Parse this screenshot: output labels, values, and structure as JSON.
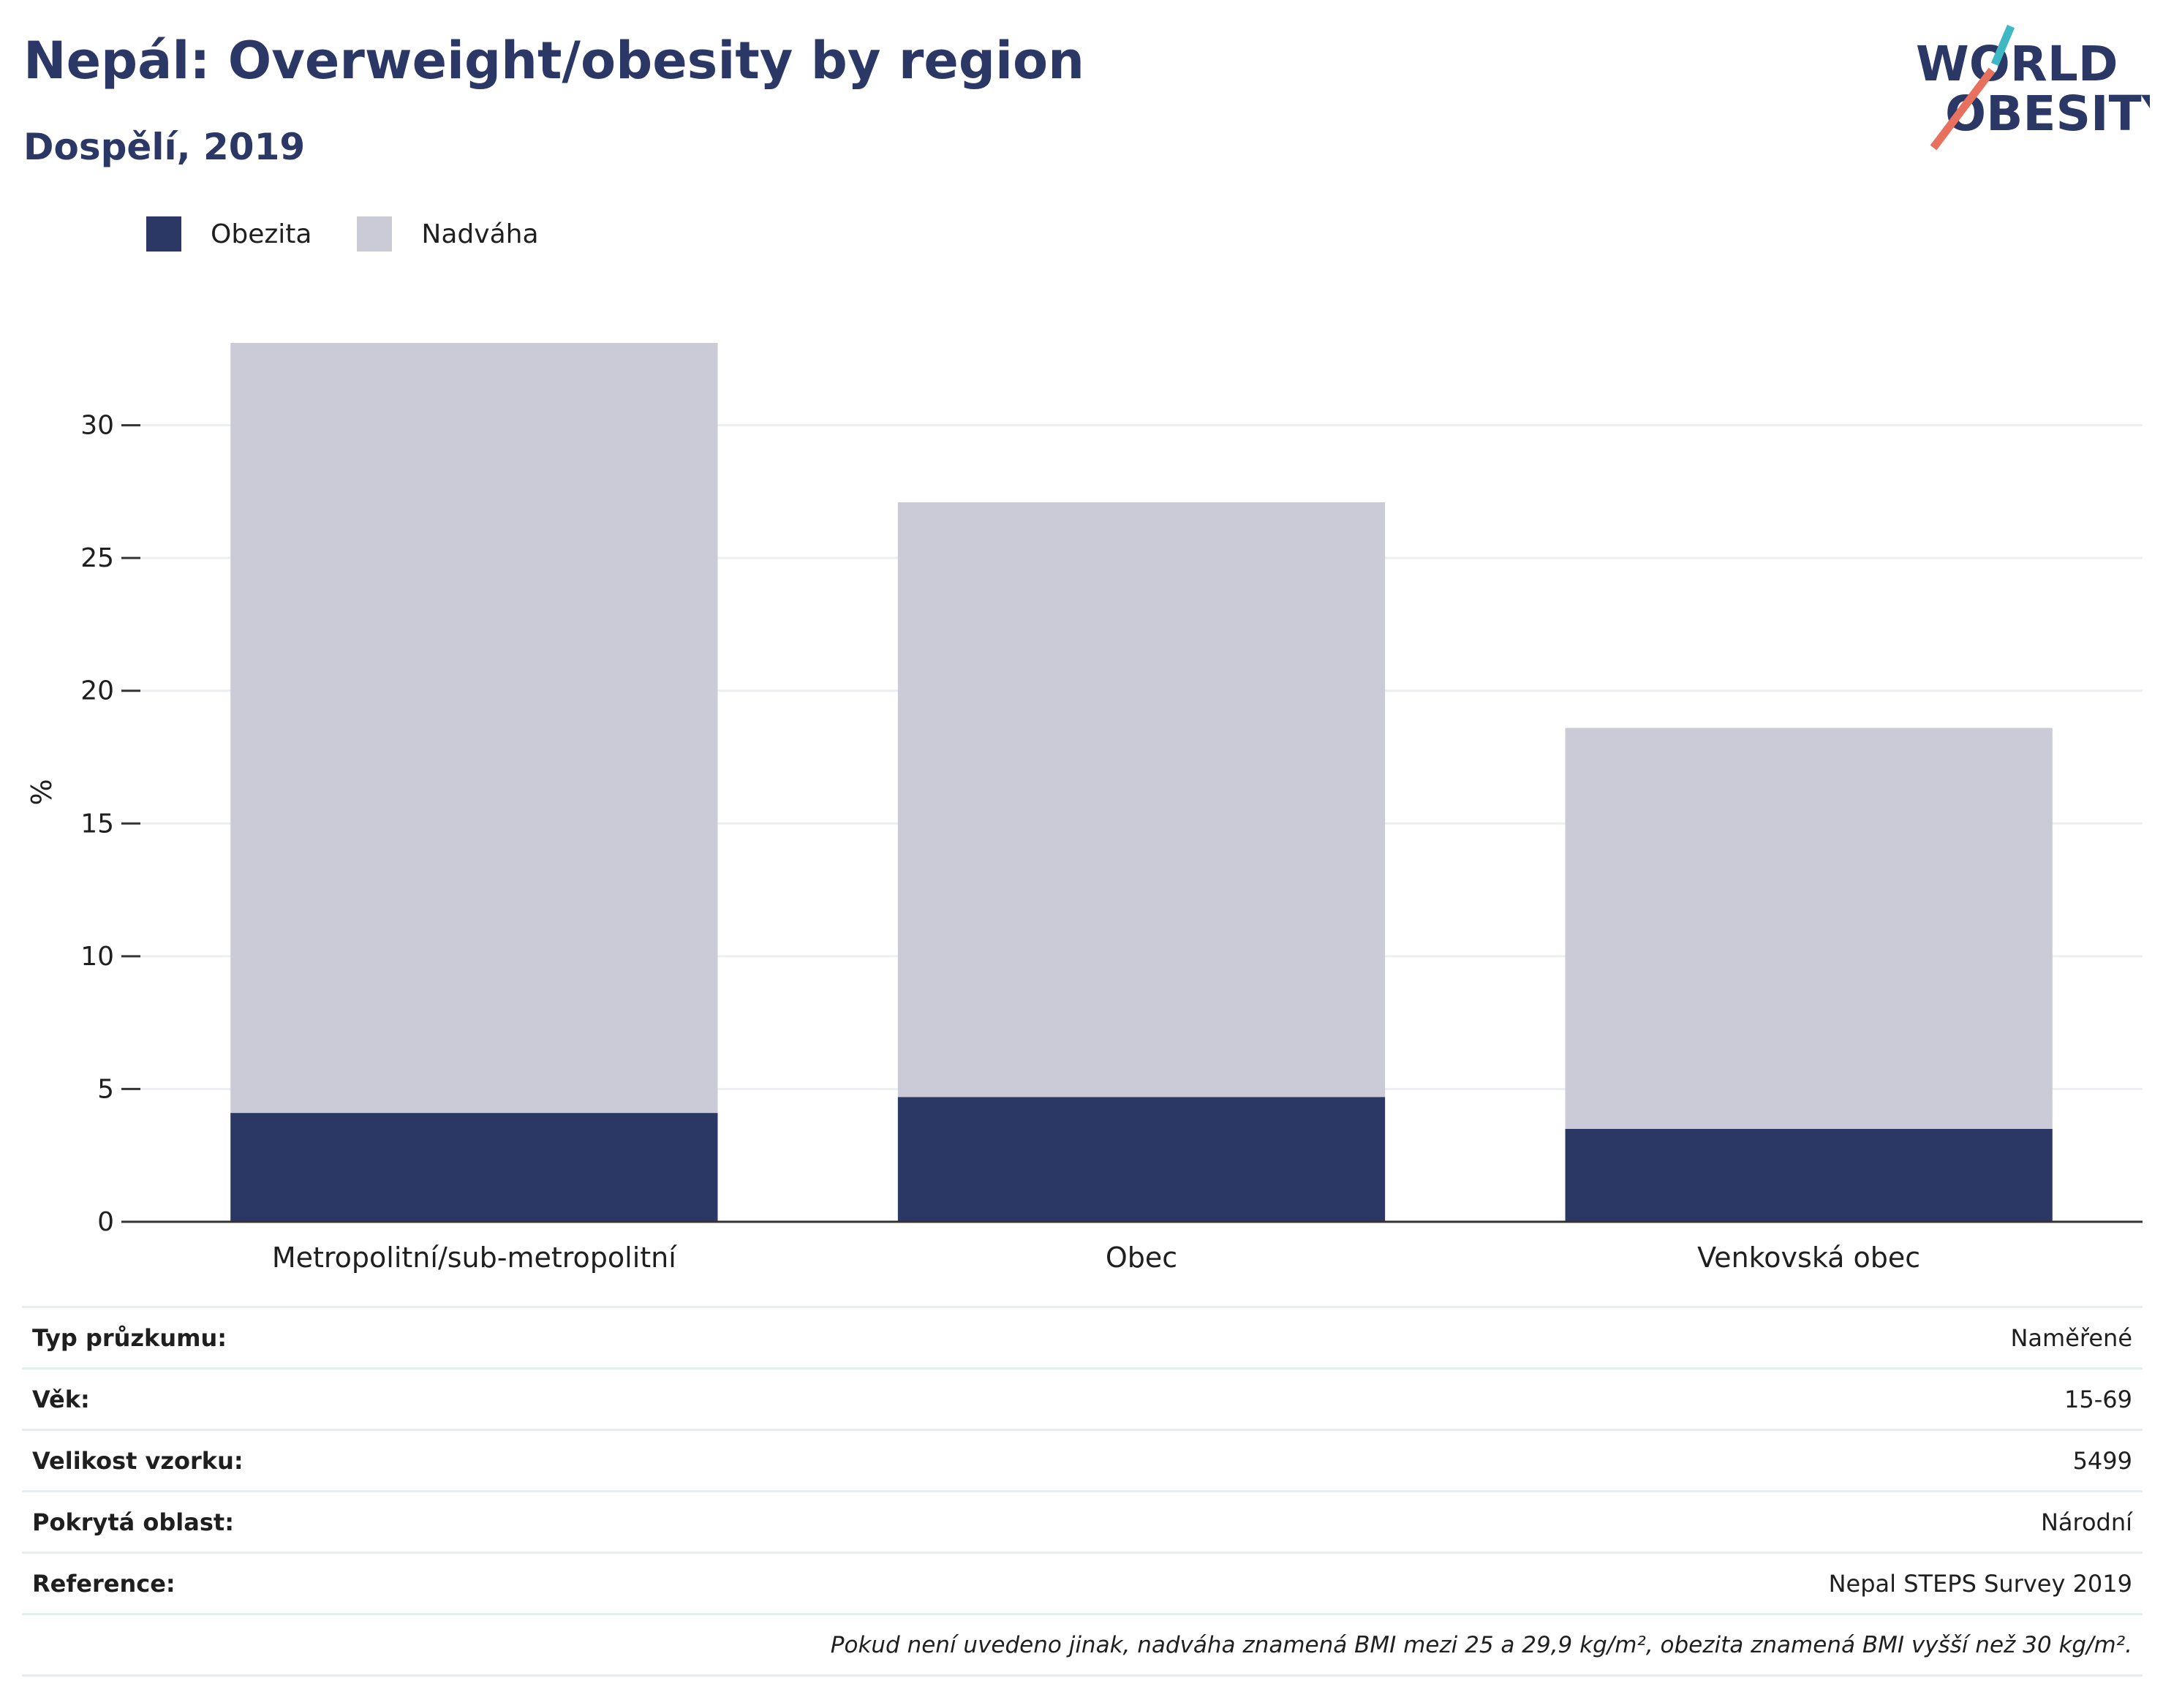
{
  "header": {
    "title": "Nepál: Overweight/obesity by region",
    "subtitle": "Dospělí, 2019"
  },
  "logo": {
    "line1": "WORLD",
    "line2": "OBESITY"
  },
  "colors": {
    "obesity": "#2b3765",
    "overweight": "#cacbd6",
    "text_primary": "#2b3765",
    "logo_teal": "#3fb8c4",
    "logo_coral": "#e8705f"
  },
  "chart_data": {
    "type": "bar",
    "stacked": true,
    "categories": [
      "Metropolitní/sub-metropolitní",
      "Obec",
      "Venkovská obec"
    ],
    "series": [
      {
        "name": "Obezita",
        "values": [
          4.1,
          4.7,
          3.5
        ]
      },
      {
        "name": "Nadváha",
        "values": [
          29.0,
          22.4,
          15.1
        ]
      }
    ],
    "ylabel": "%",
    "ylim": [
      0,
      35
    ],
    "yticks": [
      0,
      5,
      10,
      15,
      20,
      25,
      30
    ],
    "grid": true,
    "legend_position": "top-left"
  },
  "info_table": [
    {
      "key": "Typ průzkumu:",
      "value": "Naměřené"
    },
    {
      "key": "Věk:",
      "value": "15-69"
    },
    {
      "key": "Velikost vzorku:",
      "value": "5499"
    },
    {
      "key": "Pokrytá oblast:",
      "value": "Národní"
    },
    {
      "key": "Reference:",
      "value": "Nepal STEPS Survey 2019"
    }
  ],
  "footnote": "Pokud není uvedeno jinak, nadváha znamená BMI mezi 25 a 29,9 kg/m², obezita znamená BMI vyšší než 30 kg/m²."
}
